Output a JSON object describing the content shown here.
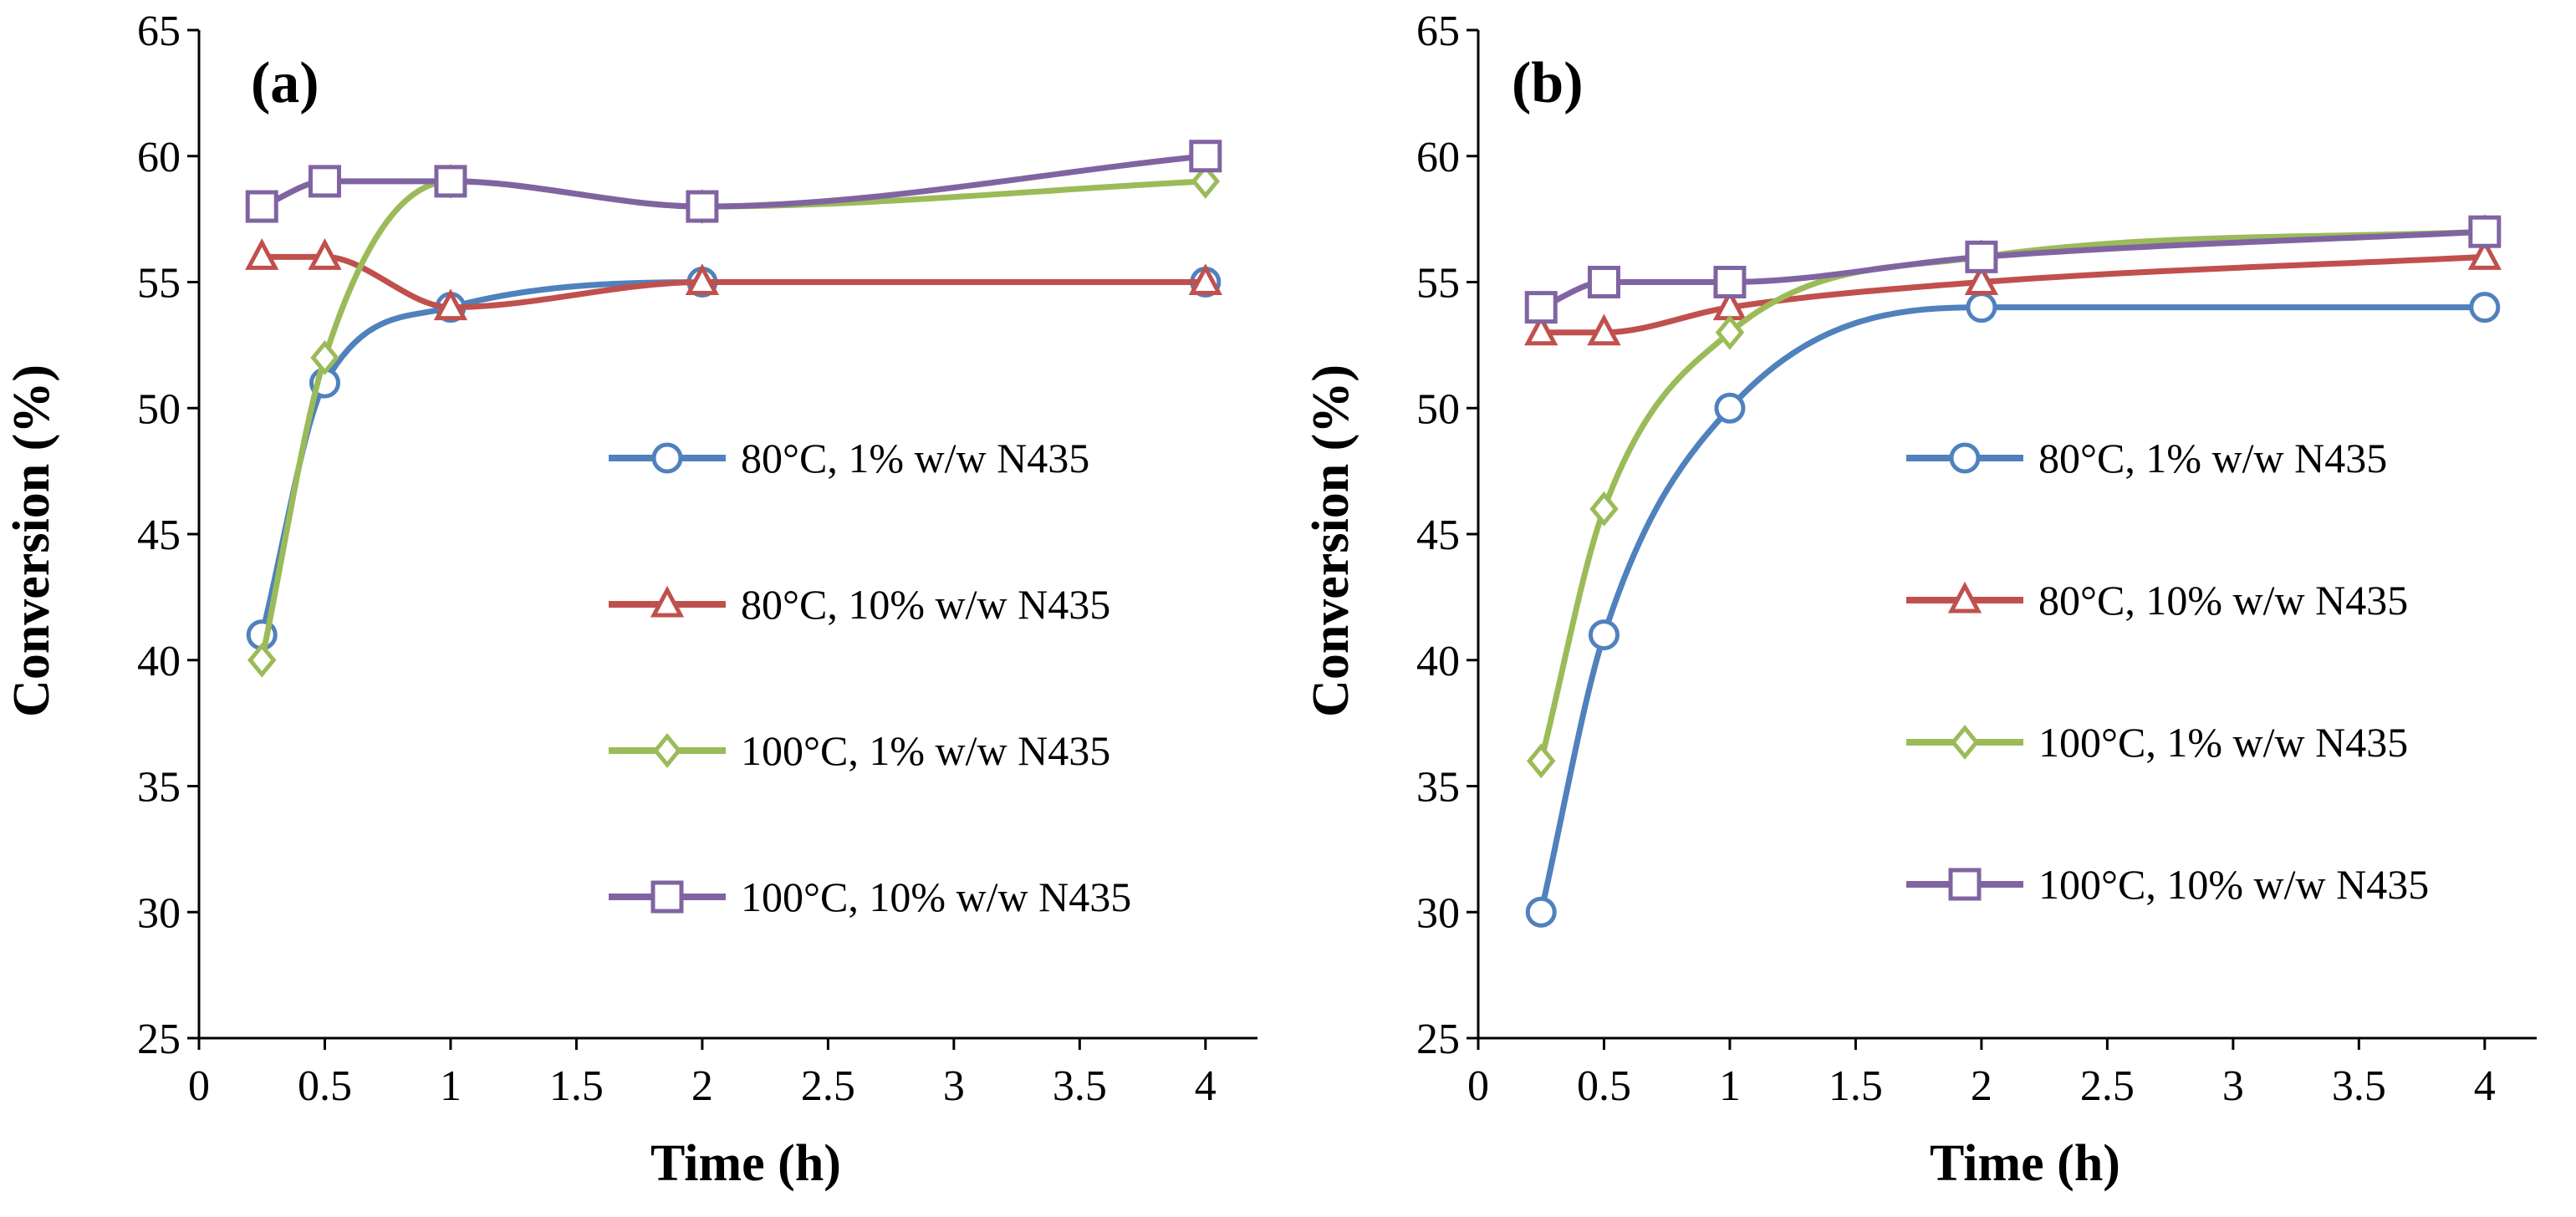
{
  "chart_data": [
    {
      "type": "line",
      "panel_label": "(a)",
      "xlabel": "Time (h)",
      "ylabel": "Conversion (%)",
      "xlim": [
        0,
        4.2
      ],
      "ylim": [
        25,
        65
      ],
      "xticks": [
        0,
        0.5,
        1,
        1.5,
        2,
        2.5,
        3,
        3.5,
        4
      ],
      "xtick_labels": [
        "0",
        "0.5",
        "1",
        "1.5",
        "2",
        "2.5",
        "3",
        "3.5",
        "4"
      ],
      "yticks": [
        25,
        30,
        35,
        40,
        45,
        50,
        55,
        60,
        65
      ],
      "ytick_labels": [
        "25",
        "30",
        "35",
        "40",
        "45",
        "50",
        "55",
        "60",
        "65"
      ],
      "grid": false,
      "legend_position": "center-right",
      "x": [
        0.25,
        0.5,
        1,
        2,
        4
      ],
      "series": [
        {
          "name": "80°C, 1% w/w N435",
          "color": "#4F81BD",
          "marker": "circle",
          "values": [
            41,
            51,
            54,
            55,
            55
          ]
        },
        {
          "name": "80°C, 10% w/w N435",
          "color": "#C0504D",
          "marker": "triangle",
          "values": [
            56,
            56,
            54,
            55,
            55
          ]
        },
        {
          "name": "100°C, 1% w/w N435",
          "color": "#9BBB59",
          "marker": "diamond",
          "values": [
            40,
            52,
            59,
            58,
            59
          ]
        },
        {
          "name": "100°C, 10% w/w N435",
          "color": "#8064A2",
          "marker": "square",
          "values": [
            58,
            59,
            59,
            58,
            60
          ]
        }
      ]
    },
    {
      "type": "line",
      "panel_label": "(b)",
      "xlabel": "Time (h)",
      "ylabel": "Conversion (%)",
      "xlim": [
        0,
        4.2
      ],
      "ylim": [
        25,
        65
      ],
      "xticks": [
        0,
        0.5,
        1,
        1.5,
        2,
        2.5,
        3,
        3.5,
        4
      ],
      "xtick_labels": [
        "0",
        "0.5",
        "1",
        "1.5",
        "2",
        "2.5",
        "3",
        "3.5",
        "4"
      ],
      "yticks": [
        25,
        30,
        35,
        40,
        45,
        50,
        55,
        60,
        65
      ],
      "ytick_labels": [
        "25",
        "30",
        "35",
        "40",
        "45",
        "50",
        "55",
        "60",
        "65"
      ],
      "grid": false,
      "legend_position": "center-right",
      "x": [
        0.25,
        0.5,
        1,
        2,
        4
      ],
      "series": [
        {
          "name": "80°C, 1% w/w N435",
          "color": "#4F81BD",
          "marker": "circle",
          "values": [
            30,
            41,
            50,
            54,
            54
          ]
        },
        {
          "name": "80°C, 10% w/w N435",
          "color": "#C0504D",
          "marker": "triangle",
          "values": [
            53,
            53,
            54,
            55,
            56
          ]
        },
        {
          "name": "100°C, 1% w/w N435",
          "color": "#9BBB59",
          "marker": "diamond",
          "values": [
            36,
            46,
            53,
            56,
            57
          ]
        },
        {
          "name": "100°C, 10% w/w N435",
          "color": "#8064A2",
          "marker": "square",
          "values": [
            54,
            55,
            55,
            56,
            57
          ]
        }
      ]
    }
  ]
}
